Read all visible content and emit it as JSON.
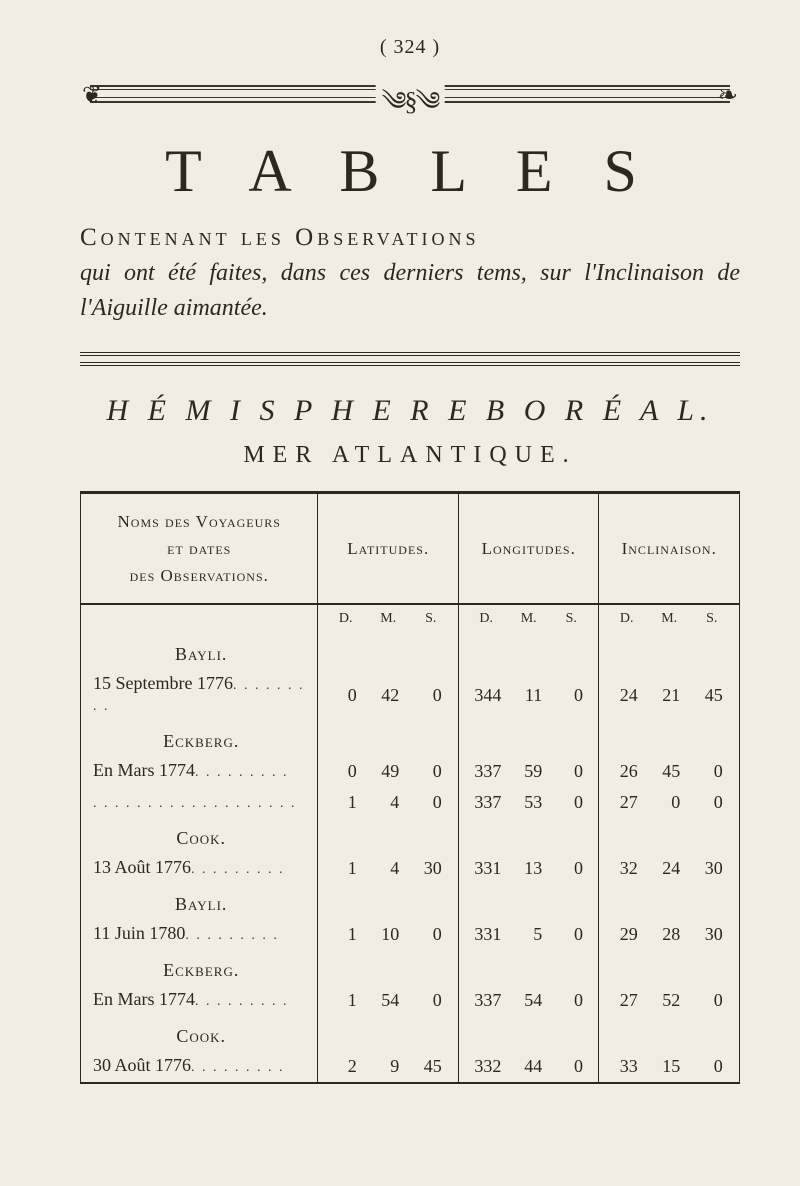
{
  "page_number_display": "( 324 )",
  "ornament": {
    "center": "༄§༄",
    "left_glyph": "❦",
    "right_glyph": "❧"
  },
  "title": "T A B L E S",
  "subtitle_line1_caps": "Contenant les Observations",
  "subtitle_rest": "qui ont été faites, dans ces derniers tems, sur l'Inclinaison de l'Aiguille aimantée.",
  "hemisphere": "H É M I S P H E R E   B O R É A L.",
  "sea": "MER  ATLANTIQUE.",
  "table": {
    "headers": {
      "names": "Noms des Voyageurs\net dates\ndes Observations.",
      "lat": "Latitudes.",
      "lon": "Longitudes.",
      "inc": "Inclinaison."
    },
    "units": {
      "d": "D.",
      "m": "M.",
      "s": "S."
    },
    "rows": [
      {
        "voyager": "Bayli.",
        "entry": "15 Septembre 1776",
        "lat": [
          "0",
          "42",
          "0"
        ],
        "lon": [
          "344",
          "11",
          "0"
        ],
        "inc": [
          "24",
          "21",
          "45"
        ]
      },
      {
        "voyager": "Eckberg.",
        "entry": "En Mars 1774",
        "lat": [
          "0",
          "49",
          "0"
        ],
        "lon": [
          "337",
          "59",
          "0"
        ],
        "inc": [
          "26",
          "45",
          "0"
        ]
      },
      {
        "voyager": null,
        "entry": "",
        "lat": [
          "1",
          "4",
          "0"
        ],
        "lon": [
          "337",
          "53",
          "0"
        ],
        "inc": [
          "27",
          "0",
          "0"
        ]
      },
      {
        "voyager": "Cook.",
        "entry": "13 Août 1776",
        "lat": [
          "1",
          "4",
          "30"
        ],
        "lon": [
          "331",
          "13",
          "0"
        ],
        "inc": [
          "32",
          "24",
          "30"
        ]
      },
      {
        "voyager": "Bayli.",
        "entry": "11 Juin 1780",
        "lat": [
          "1",
          "10",
          "0"
        ],
        "lon": [
          "331",
          "5",
          "0"
        ],
        "inc": [
          "29",
          "28",
          "30"
        ]
      },
      {
        "voyager": "Eckberg.",
        "entry": "En Mars 1774",
        "lat": [
          "1",
          "54",
          "0"
        ],
        "lon": [
          "337",
          "54",
          "0"
        ],
        "inc": [
          "27",
          "52",
          "0"
        ]
      },
      {
        "voyager": "Cook.",
        "entry": "30 Août 1776",
        "lat": [
          "2",
          "9",
          "45"
        ],
        "lon": [
          "332",
          "44",
          "0"
        ],
        "inc": [
          "33",
          "15",
          "0"
        ]
      }
    ]
  },
  "colors": {
    "page_bg": "#f2ede2",
    "ink": "#2b2820"
  },
  "typography": {
    "title_fontsize_pt": 46,
    "body_fontsize_pt": 15,
    "font_family": "Times New Roman / antiqua serif"
  }
}
